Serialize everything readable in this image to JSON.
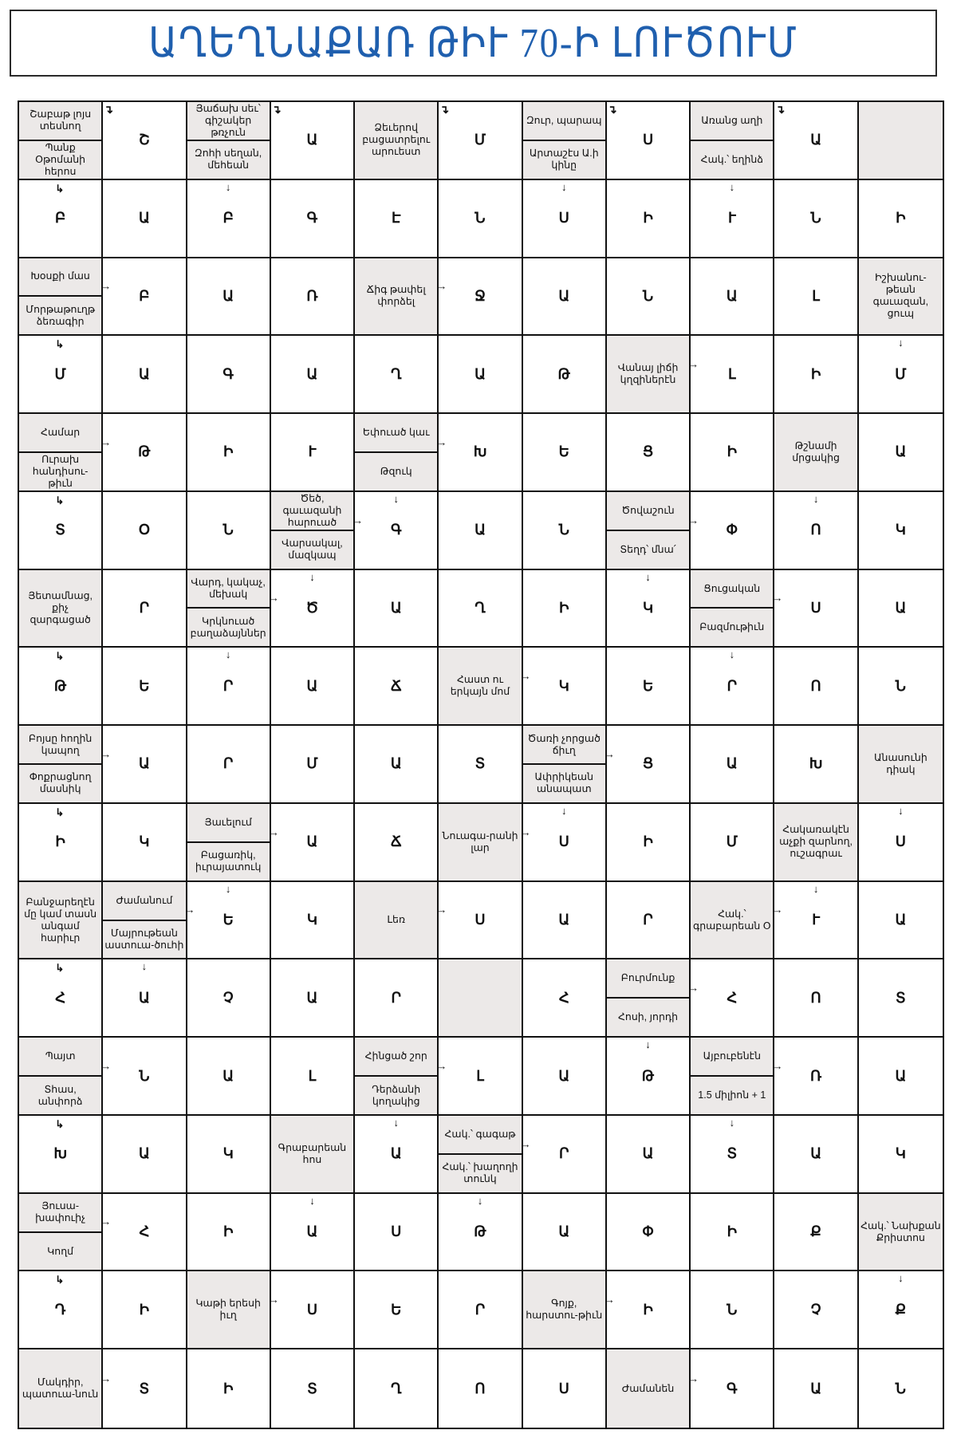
{
  "title": "ԱՂԵՂՆԱՔԱՌ ԹԻՒ 70-Ի ԼՈՒԾՈՒՄ",
  "colors": {
    "title": "#1f5fae",
    "clue_bg": "#ece9e8",
    "grid": "#111111"
  },
  "grid": [
    [
      {
        "c": [
          "Շաբաթ լոյս տեսնող",
          "Պանք Օթոմանի հերոս"
        ]
      },
      {
        "l": "Շ",
        "a": [
          "bend-down"
        ]
      },
      {
        "c": [
          "Յաճախ սեւ՝ գիշակեր թռչուն",
          "Զոհի սեղան, մեհեան"
        ]
      },
      {
        "l": "Ա",
        "a": [
          "bend-down"
        ]
      },
      {
        "c": [
          "Ձեւերով բացատրելու արուեստ"
        ]
      },
      {
        "l": "Մ",
        "a": [
          "bend-down"
        ]
      },
      {
        "c": [
          "Զուր, պարապ",
          "Արտաշէս Ա.ի կինը"
        ]
      },
      {
        "l": "Ս",
        "a": [
          "bend-down"
        ]
      },
      {
        "c": [
          "Առանց աղի",
          "Հակ.՝ եղինձ"
        ]
      },
      {
        "l": "Ա",
        "a": [
          "bend-down"
        ]
      },
      {
        "e": true
      }
    ],
    [
      {
        "l": "Բ",
        "a": [
          "bend-right"
        ]
      },
      {
        "l": "Ա"
      },
      {
        "l": "Բ",
        "a": [
          "down"
        ]
      },
      {
        "l": "Գ"
      },
      {
        "l": "Է"
      },
      {
        "l": "Ն"
      },
      {
        "l": "Ս",
        "a": [
          "down"
        ]
      },
      {
        "l": "Ի"
      },
      {
        "l": "Ւ",
        "a": [
          "down"
        ]
      },
      {
        "l": "Ն"
      },
      {
        "l": "Ի"
      }
    ],
    [
      {
        "c": [
          "Խօսքի մաս",
          "Մորթաթուղթ ձեռագիր"
        ]
      },
      {
        "l": "Բ",
        "a": [
          "right"
        ]
      },
      {
        "l": "Ա"
      },
      {
        "l": "Ռ"
      },
      {
        "c": [
          "Ճիգ թափել փորձել"
        ]
      },
      {
        "l": "Ջ",
        "a": [
          "right"
        ]
      },
      {
        "l": "Ա"
      },
      {
        "l": "Ն"
      },
      {
        "l": "Ա"
      },
      {
        "l": "Լ"
      },
      {
        "c": [
          "Իշխանու-թեան գաւազան, ցուպ"
        ]
      }
    ],
    [
      {
        "l": "Մ",
        "a": [
          "bend-right"
        ]
      },
      {
        "l": "Ա"
      },
      {
        "l": "Գ"
      },
      {
        "l": "Ա"
      },
      {
        "l": "Ղ"
      },
      {
        "l": "Ա"
      },
      {
        "l": "Թ"
      },
      {
        "c": [
          "Վանայ լիճի կղզիներէն"
        ]
      },
      {
        "l": "Լ",
        "a": [
          "right"
        ]
      },
      {
        "l": "Ի"
      },
      {
        "l": "Մ",
        "a": [
          "down"
        ]
      }
    ],
    [
      {
        "c": [
          "Համար",
          "Ուրախ հանդիսու-թիւն"
        ]
      },
      {
        "l": "Թ",
        "a": [
          "right"
        ]
      },
      {
        "l": "Ի"
      },
      {
        "l": "Ւ"
      },
      {
        "c": [
          "Եփուած կաւ",
          "Թզուկ"
        ]
      },
      {
        "l": "Խ",
        "a": [
          "right"
        ]
      },
      {
        "l": "Ե"
      },
      {
        "l": "Ց"
      },
      {
        "l": "Ի"
      },
      {
        "c": [
          "Թշնամի մրցակից"
        ]
      },
      {
        "l": "Ա"
      }
    ],
    [
      {
        "l": "Տ",
        "a": [
          "bend-right"
        ]
      },
      {
        "l": "Օ"
      },
      {
        "l": "Ն"
      },
      {
        "c": [
          "Ծեծ, գաւազանի հարուած",
          "Վարսակալ, մազկապ"
        ]
      },
      {
        "l": "Գ",
        "a": [
          "down",
          "right"
        ]
      },
      {
        "l": "Ա"
      },
      {
        "l": "Ն"
      },
      {
        "c": [
          "Ծովաշուն",
          "Տեղդ՝ մնա՛"
        ]
      },
      {
        "l": "Փ",
        "a": [
          "right"
        ]
      },
      {
        "l": "Ո",
        "a": [
          "down"
        ]
      },
      {
        "l": "Կ"
      }
    ],
    [
      {
        "c": [
          "Յետամնաց, քիչ զարգացած"
        ]
      },
      {
        "l": "Ր"
      },
      {
        "c": [
          "Վարդ, կակաչ, մեխակ",
          "Կրկնուած բաղաձայններ"
        ]
      },
      {
        "l": "Ծ",
        "a": [
          "down",
          "right"
        ]
      },
      {
        "l": "Ա"
      },
      {
        "l": "Ղ"
      },
      {
        "l": "Ի"
      },
      {
        "l": "Կ",
        "a": [
          "down"
        ]
      },
      {
        "c": [
          "Ցուցական",
          "Բազմութիւն"
        ]
      },
      {
        "l": "Ս",
        "a": [
          "right"
        ]
      },
      {
        "l": "Ա"
      }
    ],
    [
      {
        "l": "Թ",
        "a": [
          "bend-right"
        ]
      },
      {
        "l": "Ե"
      },
      {
        "l": "Ր",
        "a": [
          "down"
        ]
      },
      {
        "l": "Ա"
      },
      {
        "l": "Ճ"
      },
      {
        "c": [
          "Հաստ ու երկայն մոմ"
        ]
      },
      {
        "l": "Կ",
        "a": [
          "right"
        ]
      },
      {
        "l": "Ե"
      },
      {
        "l": "Ր",
        "a": [
          "down"
        ]
      },
      {
        "l": "Ո"
      },
      {
        "l": "Ն"
      }
    ],
    [
      {
        "c": [
          "Բոյսը հողին կապող",
          "Փոքրացնող մասնիկ"
        ]
      },
      {
        "l": "Ա",
        "a": [
          "right"
        ]
      },
      {
        "l": "Ր"
      },
      {
        "l": "Մ"
      },
      {
        "l": "Ա"
      },
      {
        "l": "Տ"
      },
      {
        "c": [
          "Ծառի չորցած ճիւղ",
          "Ափրիկեան անապատ"
        ]
      },
      {
        "l": "Ց",
        "a": [
          "right"
        ]
      },
      {
        "l": "Ա"
      },
      {
        "l": "Խ"
      },
      {
        "c": [
          "Անասունի դիակ"
        ]
      }
    ],
    [
      {
        "l": "Ի",
        "a": [
          "bend-right"
        ]
      },
      {
        "l": "Կ"
      },
      {
        "c": [
          "Յաւելում",
          "Բացառիկ, իւրայատուկ"
        ]
      },
      {
        "l": "Ա",
        "a": [
          "right"
        ]
      },
      {
        "l": "Ճ"
      },
      {
        "c": [
          "Նուագա-րանի լար"
        ]
      },
      {
        "l": "Ս",
        "a": [
          "down",
          "right"
        ]
      },
      {
        "l": "Ի"
      },
      {
        "l": "Մ"
      },
      {
        "c": [
          "Հակառակէն աչքի զարնող, ուշագրաւ"
        ]
      },
      {
        "l": "Ս",
        "a": [
          "down"
        ]
      }
    ],
    [
      {
        "c": [
          "Բանջարեղէն մը կամ տասն անգամ հարիւր"
        ]
      },
      {
        "c": [
          "Ժամանում",
          "Մայրութեան աստուա-ծուհի"
        ]
      },
      {
        "l": "Ե",
        "a": [
          "down",
          "right"
        ]
      },
      {
        "l": "Կ"
      },
      {
        "c": [
          "Լեռ"
        ]
      },
      {
        "l": "Ս",
        "a": [
          "right"
        ]
      },
      {
        "l": "Ա"
      },
      {
        "l": "Ր"
      },
      {
        "c": [
          "Հակ.՝ գրաբարեան Օ"
        ]
      },
      {
        "l": "Ւ",
        "a": [
          "down",
          "right"
        ]
      },
      {
        "l": "Ա"
      }
    ],
    [
      {
        "l": "Հ",
        "a": [
          "bend-right"
        ]
      },
      {
        "l": "Ա",
        "a": [
          "down"
        ]
      },
      {
        "l": "Չ"
      },
      {
        "l": "Ա"
      },
      {
        "l": "Ր"
      },
      {
        "e": true
      },
      {
        "l": "Հ"
      },
      {
        "c": [
          "Բուրմունք",
          "Հոսի, յորդի"
        ]
      },
      {
        "l": "Հ",
        "a": [
          "right"
        ]
      },
      {
        "l": "Ո"
      },
      {
        "l": "Տ"
      }
    ],
    [
      {
        "c": [
          "Պայտ",
          "Տհաս, անփորձ"
        ]
      },
      {
        "l": "Ն",
        "a": [
          "right"
        ]
      },
      {
        "l": "Ա"
      },
      {
        "l": "Լ"
      },
      {
        "c": [
          "Հինցած շոր",
          "Դերձանի կողակից"
        ]
      },
      {
        "l": "Լ",
        "a": [
          "right"
        ]
      },
      {
        "l": "Ա"
      },
      {
        "l": "Թ",
        "a": [
          "down"
        ]
      },
      {
        "c": [
          "Այբուբենէն",
          "1.5 միլիոն + 1"
        ]
      },
      {
        "l": "Ռ",
        "a": [
          "right"
        ]
      },
      {
        "l": "Ա"
      }
    ],
    [
      {
        "l": "Խ",
        "a": [
          "bend-right"
        ]
      },
      {
        "l": "Ա"
      },
      {
        "l": "Կ"
      },
      {
        "c": [
          "Գրաբարեան հոս"
        ]
      },
      {
        "l": "Ա",
        "a": [
          "down"
        ]
      },
      {
        "c": [
          "Հակ.՝ գագաթ",
          "Հակ.՝ խաղողի տունկ"
        ]
      },
      {
        "l": "Ր",
        "a": [
          "right"
        ]
      },
      {
        "l": "Ա"
      },
      {
        "l": "Տ",
        "a": [
          "down"
        ]
      },
      {
        "l": "Ա"
      },
      {
        "l": "Կ"
      }
    ],
    [
      {
        "c": [
          "Յուսա-խափուիչ",
          "Կողմ"
        ]
      },
      {
        "l": "Հ",
        "a": [
          "right"
        ]
      },
      {
        "l": "Ի"
      },
      {
        "l": "Ա",
        "a": [
          "down"
        ]
      },
      {
        "l": "Ս"
      },
      {
        "l": "Թ",
        "a": [
          "down"
        ]
      },
      {
        "l": "Ա"
      },
      {
        "l": "Փ"
      },
      {
        "l": "Ի"
      },
      {
        "l": "Ք"
      },
      {
        "c": [
          "Հակ.՝ Նախքան Քրիստոս"
        ]
      }
    ],
    [
      {
        "l": "Դ",
        "a": [
          "bend-right"
        ]
      },
      {
        "l": "Ի"
      },
      {
        "c": [
          "Կաթի երեսի իւղ"
        ]
      },
      {
        "l": "Ս",
        "a": [
          "right"
        ]
      },
      {
        "l": "Ե"
      },
      {
        "l": "Ր"
      },
      {
        "c": [
          "Գոյք, հարստու-թիւն"
        ]
      },
      {
        "l": "Ի",
        "a": [
          "right"
        ]
      },
      {
        "l": "Ն"
      },
      {
        "l": "Չ"
      },
      {
        "l": "Ք",
        "a": [
          "down"
        ]
      }
    ],
    [
      {
        "c": [
          "Մակդիր, պատուա-նուն"
        ]
      },
      {
        "l": "Տ",
        "a": [
          "right"
        ]
      },
      {
        "l": "Ի"
      },
      {
        "l": "Տ"
      },
      {
        "l": "Ղ"
      },
      {
        "l": "Ո"
      },
      {
        "l": "Ս"
      },
      {
        "c": [
          "Ժամանեն"
        ]
      },
      {
        "l": "Գ",
        "a": [
          "right"
        ]
      },
      {
        "l": "Ա"
      },
      {
        "l": "Ն"
      }
    ]
  ]
}
